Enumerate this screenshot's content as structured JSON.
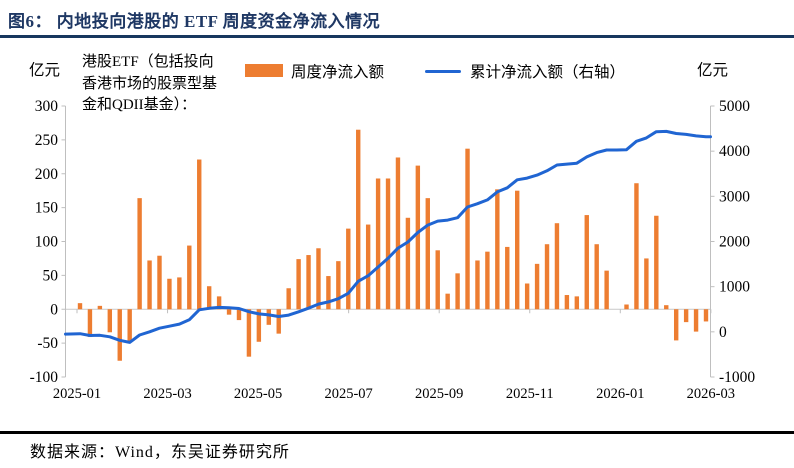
{
  "figure": {
    "title": "图6：  内地投向港股的 ETF 周度资金净流入情况",
    "source": "数据来源：Wind，东吴证券研究所"
  },
  "legend": {
    "note_lines": [
      "港股ETF（包括投向",
      "香港市场的股票型基",
      "金和QDII基金）："
    ],
    "bar_label": "周度净流入额",
    "line_label": "累计净流入额（右轴）"
  },
  "axes": {
    "left_unit": "亿元",
    "right_unit": "亿元"
  },
  "colors": {
    "bar": "#ED7D31",
    "line": "#2065D2",
    "title": "#1F3864",
    "header_rule": "#17375E",
    "axis_line": "#BFBFBF",
    "zero_line": "#C9C9C9",
    "tick_text": "#000000"
  },
  "chart_data": {
    "type": "combo (weekly bar on left axis + cumulative line on right axis)",
    "x_tick_labels": [
      "2025-01",
      "2025-03",
      "2025-05",
      "2025-07",
      "2025-09",
      "2025-11",
      "2026-01",
      "2026-03"
    ],
    "left_axis": {
      "unit": "亿元",
      "min": -100,
      "max": 300,
      "step": 50,
      "tick_labels": [
        "300",
        "250",
        "200",
        "150",
        "100",
        "50",
        "0",
        "-50",
        "-100"
      ]
    },
    "right_axis": {
      "unit": "亿元",
      "min": -1000,
      "max": 5000,
      "step": 1000,
      "tick_labels": [
        "5000",
        "4000",
        "3000",
        "2000",
        "1000",
        "0",
        "-1000"
      ]
    },
    "series": [
      {
        "name": "周度净流入额",
        "type": "bar",
        "axis": "left",
        "color": "#ED7D31",
        "values": [
          9,
          -41,
          5,
          -34,
          -76,
          -48,
          164,
          72,
          79,
          45,
          47,
          94,
          221,
          34,
          19,
          -8,
          -16,
          -70,
          -48,
          -23,
          -36,
          31,
          74,
          80,
          90,
          49,
          71,
          119,
          265,
          125,
          193,
          193,
          224,
          135,
          212,
          164,
          87,
          23,
          53,
          237,
          72,
          85,
          177,
          92,
          175,
          38,
          67,
          96,
          127,
          21,
          19,
          139,
          96,
          57,
          0,
          7,
          186,
          75,
          138,
          6,
          -46,
          -19,
          -33,
          -18
        ]
      },
      {
        "name": "累计净流入额（右轴）",
        "type": "line",
        "axis": "right",
        "color": "#2065D2",
        "start_value": -50,
        "values": [
          -41,
          -82,
          -77,
          -111,
          -187,
          -235,
          -71,
          1,
          80,
          125,
          172,
          266,
          487,
          521,
          540,
          532,
          516,
          446,
          398,
          375,
          339,
          370,
          444,
          524,
          614,
          663,
          734,
          853,
          1118,
          1243,
          1436,
          1629,
          1853,
          1988,
          2200,
          2364,
          2451,
          2474,
          2527,
          2764,
          2836,
          2921,
          3098,
          3190,
          3365,
          3403,
          3470,
          3566,
          3693,
          3714,
          3733,
          3872,
          3968,
          4025,
          4025,
          4032,
          4218,
          4293,
          4431,
          4437,
          4391,
          4372,
          4339,
          4321
        ]
      }
    ]
  }
}
